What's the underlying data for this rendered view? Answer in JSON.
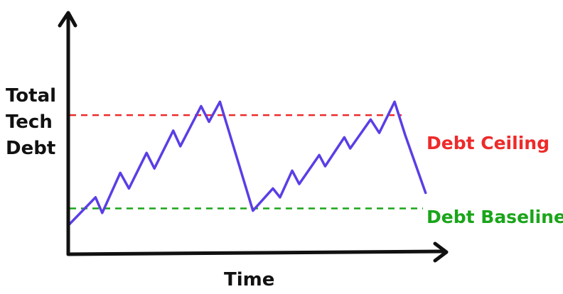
{
  "chart_data": {
    "type": "line",
    "title": "",
    "xlabel": "Time",
    "ylabel": [
      "Total",
      "Tech",
      "Debt"
    ],
    "xlim": [
      0,
      100
    ],
    "ylim": [
      0,
      100
    ],
    "grid": false,
    "colors": {
      "line": "#5a3ee6",
      "ceiling": "#ee2a2a",
      "baseline": "#1aa51a",
      "axis": "#111111"
    },
    "thresholds": [
      {
        "label": "Debt Ceiling",
        "value": 61,
        "color": "#ee2a2a"
      },
      {
        "label": "Debt Baseline",
        "value": 19,
        "color": "#1aa51a"
      }
    ],
    "series": [
      {
        "values": [
          [
            0,
            12
          ],
          [
            6.6,
            24
          ],
          [
            8.3,
            17
          ],
          [
            12.9,
            35
          ],
          [
            15.1,
            28
          ],
          [
            19.6,
            44
          ],
          [
            21.6,
            37
          ],
          [
            26.4,
            54
          ],
          [
            28.2,
            47
          ],
          [
            33.5,
            65
          ],
          [
            35.5,
            58
          ],
          [
            38.3,
            67
          ],
          [
            46.7,
            18
          ],
          [
            51.8,
            28
          ],
          [
            53.6,
            24
          ],
          [
            56.7,
            36
          ],
          [
            58.5,
            30
          ],
          [
            63.6,
            43
          ],
          [
            65.1,
            38
          ],
          [
            70,
            51
          ],
          [
            71.5,
            46
          ],
          [
            76.7,
            59
          ],
          [
            78.9,
            53
          ],
          [
            82.8,
            67
          ],
          [
            85.5,
            52
          ],
          [
            90.7,
            26
          ]
        ]
      }
    ]
  }
}
